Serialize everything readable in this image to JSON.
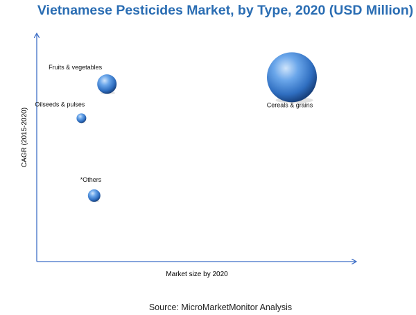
{
  "chart_data": {
    "type": "scatter",
    "title": "Vietnamese Pesticides Market, by Type, 2020 (USD Million)",
    "xlabel": "Market size by 2020",
    "ylabel": "CAGR (2015-2020)",
    "grid": false,
    "points": [
      {
        "label": "Fruits & vegetables",
        "x": 22,
        "y": 78,
        "size": 14
      },
      {
        "label": "Oilseeds & pulses",
        "x": 14,
        "y": 63,
        "size": 7
      },
      {
        "label": "*Others",
        "x": 18,
        "y": 29,
        "size": 9
      },
      {
        "label": "Cereals & grains",
        "x": 80,
        "y": 81,
        "size": 36
      }
    ],
    "source": "Source: MicroMarketMonitor Analysis",
    "colors": {
      "title": "#2a6db3",
      "axis": "#3f6fc6",
      "bubble_light": "#cfe4fb",
      "bubble_mid": "#4b8fdc",
      "bubble_dark": "#173f7a"
    }
  }
}
